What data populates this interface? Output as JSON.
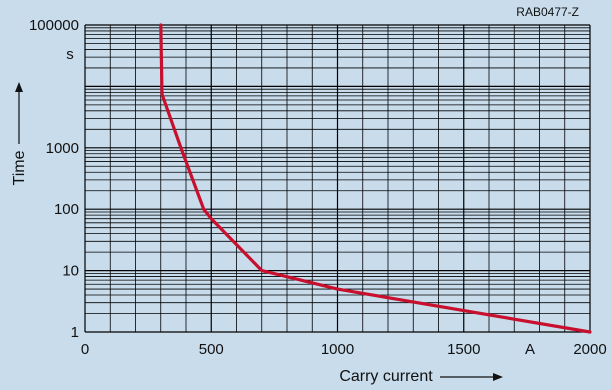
{
  "chart_data": {
    "type": "line",
    "figure_code": "RAB0477-Z",
    "xlabel": "Carry current",
    "ylabel": "Time",
    "x_unit": "A",
    "y_unit": "s",
    "x_scale": "linear",
    "y_scale": "log",
    "xlim": [
      0,
      2000
    ],
    "ylim": [
      1,
      100000
    ],
    "x_ticks": [
      {
        "value": 0,
        "label": "0"
      },
      {
        "value": 500,
        "label": "500"
      },
      {
        "value": 1000,
        "label": "1000"
      },
      {
        "value": 1500,
        "label": "1500"
      },
      {
        "value": 2000,
        "label": "2000"
      }
    ],
    "y_ticks": [
      {
        "value": 1,
        "label": "1"
      },
      {
        "value": 10,
        "label": "10"
      },
      {
        "value": 100,
        "label": "100"
      },
      {
        "value": 1000,
        "label": "1000"
      },
      {
        "value": 100000,
        "label": "100000"
      }
    ],
    "x_grid_step": 100,
    "y_grid": "log-minor",
    "series": [
      {
        "color": "#c8102e",
        "points": [
          {
            "x": 300,
            "y": 100000
          },
          {
            "x": 305,
            "y": 7500
          },
          {
            "x": 380,
            "y": 1000
          },
          {
            "x": 470,
            "y": 100
          },
          {
            "x": 500,
            "y": 70
          },
          {
            "x": 700,
            "y": 10
          },
          {
            "x": 1000,
            "y": 5
          },
          {
            "x": 2000,
            "y": 1
          }
        ]
      }
    ]
  }
}
